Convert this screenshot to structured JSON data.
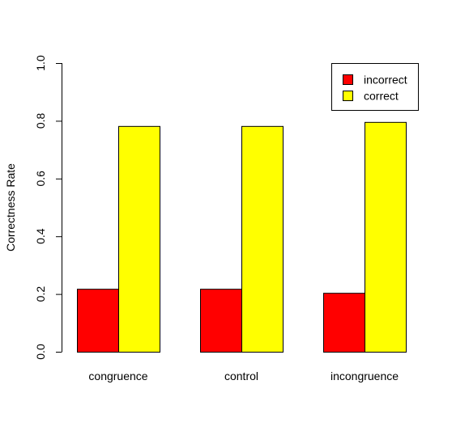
{
  "chart_data": {
    "type": "bar",
    "title": "",
    "xlabel": "",
    "ylabel": "Correctness Rate",
    "categories": [
      "congruence",
      "control",
      "incongruence"
    ],
    "series": [
      {
        "name": "incorrect",
        "color": "#ff0000",
        "values": [
          0.218,
          0.218,
          0.204
        ]
      },
      {
        "name": "correct",
        "color": "#ffff00",
        "values": [
          0.782,
          0.782,
          0.796
        ]
      }
    ],
    "ylim": [
      0,
      1
    ],
    "yticks": [
      0.0,
      0.2,
      0.4,
      0.6,
      0.8,
      1.0
    ],
    "ytick_labels": [
      "0.0",
      "0.2",
      "0.4",
      "0.6",
      "0.8",
      "1.0"
    ],
    "grouped": true,
    "grid": false,
    "legend_position": "top-right"
  }
}
